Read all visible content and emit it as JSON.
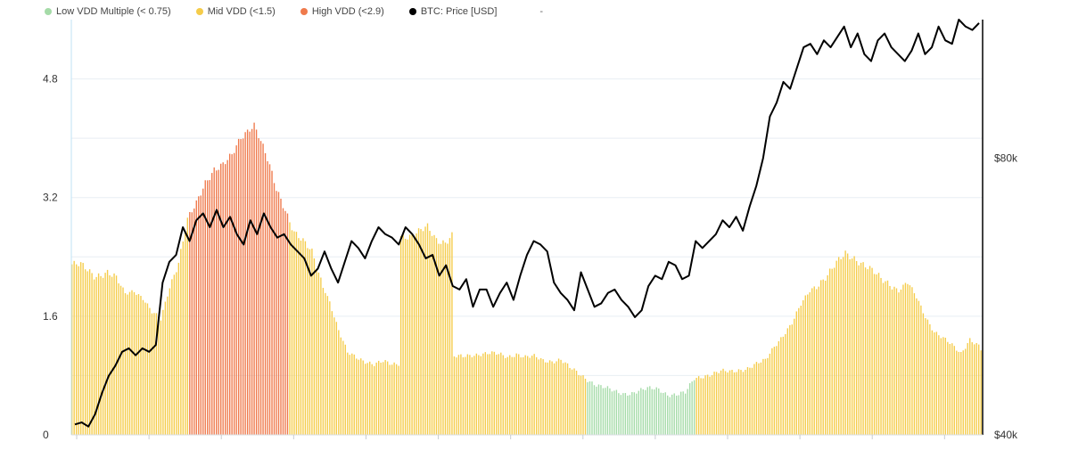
{
  "legend": {
    "items": [
      {
        "label": "Low VDD Multiple (< 0.75)",
        "color": "#a5dba8"
      },
      {
        "label": "Mid VDD (<1.5)",
        "color": "#f5cc4a"
      },
      {
        "label": "High VDD (<2.9)",
        "color": "#ef7a4c"
      },
      {
        "label": "BTC: Price [USD]",
        "color": "#000000"
      }
    ],
    "extra": "-"
  },
  "colors": {
    "low": "#a5dba8",
    "mid": "#f5cc4a",
    "high": "#ef7a4c",
    "price": "#000000",
    "grid": "#e8eef3",
    "left_axis": "#bfe3f5",
    "right_axis": "#000000"
  },
  "chart_data": {
    "type": "bar",
    "title": "",
    "grid": true,
    "legend_position": "top-left",
    "y_left": {
      "ticks": [
        "0",
        "1.6",
        "3.2",
        "4.8"
      ],
      "values": [
        0,
        1.6,
        3.2,
        4.8
      ],
      "range": [
        0,
        5.6
      ]
    },
    "y_right": {
      "ticks": [
        "$40k",
        "$80k"
      ],
      "values": [
        40000,
        80000
      ],
      "range": [
        40000,
        100000
      ]
    },
    "thresholds": {
      "low": 0.75,
      "mid": 1.5,
      "high": 2.9
    },
    "vdd_anchors": [
      {
        "i": 0,
        "v": 2.3
      },
      {
        "i": 4,
        "v": 2.28
      },
      {
        "i": 10,
        "v": 2.15
      },
      {
        "i": 16,
        "v": 2.2
      },
      {
        "i": 20,
        "v": 2.1
      },
      {
        "i": 24,
        "v": 1.9
      },
      {
        "i": 28,
        "v": 1.95
      },
      {
        "i": 32,
        "v": 1.85
      },
      {
        "i": 36,
        "v": 1.65
      },
      {
        "i": 40,
        "v": 1.55
      },
      {
        "i": 44,
        "v": 2.0
      },
      {
        "i": 48,
        "v": 2.35
      },
      {
        "i": 52,
        "v": 2.9
      },
      {
        "i": 56,
        "v": 3.1
      },
      {
        "i": 60,
        "v": 3.4
      },
      {
        "i": 64,
        "v": 3.6
      },
      {
        "i": 68,
        "v": 3.65
      },
      {
        "i": 72,
        "v": 3.75
      },
      {
        "i": 76,
        "v": 4.0
      },
      {
        "i": 80,
        "v": 4.15
      },
      {
        "i": 82,
        "v": 4.2
      },
      {
        "i": 84,
        "v": 4.05
      },
      {
        "i": 88,
        "v": 3.7
      },
      {
        "i": 92,
        "v": 3.3
      },
      {
        "i": 96,
        "v": 3.05
      },
      {
        "i": 100,
        "v": 2.75
      },
      {
        "i": 104,
        "v": 2.6
      },
      {
        "i": 108,
        "v": 2.45
      },
      {
        "i": 112,
        "v": 2.1
      },
      {
        "i": 116,
        "v": 1.8
      },
      {
        "i": 120,
        "v": 1.4
      },
      {
        "i": 124,
        "v": 1.1
      },
      {
        "i": 128,
        "v": 1.05
      },
      {
        "i": 132,
        "v": 1.0
      },
      {
        "i": 136,
        "v": 0.95
      },
      {
        "i": 140,
        "v": 0.98
      },
      {
        "i": 144,
        "v": 0.95
      },
      {
        "i": 147,
        "v": 0.97
      },
      {
        "i": 148,
        "v": 2.7
      },
      {
        "i": 152,
        "v": 2.68
      },
      {
        "i": 156,
        "v": 2.72
      },
      {
        "i": 160,
        "v": 2.8
      },
      {
        "i": 164,
        "v": 2.65
      },
      {
        "i": 168,
        "v": 2.6
      },
      {
        "i": 171,
        "v": 2.68
      },
      {
        "i": 172,
        "v": 1.05
      },
      {
        "i": 176,
        "v": 1.05
      },
      {
        "i": 180,
        "v": 1.08
      },
      {
        "i": 184,
        "v": 1.1
      },
      {
        "i": 188,
        "v": 1.1
      },
      {
        "i": 192,
        "v": 1.08
      },
      {
        "i": 196,
        "v": 1.05
      },
      {
        "i": 200,
        "v": 1.1
      },
      {
        "i": 204,
        "v": 1.05
      },
      {
        "i": 208,
        "v": 1.05
      },
      {
        "i": 212,
        "v": 1.0
      },
      {
        "i": 216,
        "v": 1.0
      },
      {
        "i": 220,
        "v": 1.02
      },
      {
        "i": 224,
        "v": 0.9
      },
      {
        "i": 228,
        "v": 0.82
      },
      {
        "i": 232,
        "v": 0.75
      },
      {
        "i": 236,
        "v": 0.68
      },
      {
        "i": 240,
        "v": 0.63
      },
      {
        "i": 244,
        "v": 0.58
      },
      {
        "i": 248,
        "v": 0.56
      },
      {
        "i": 252,
        "v": 0.57
      },
      {
        "i": 256,
        "v": 0.6
      },
      {
        "i": 260,
        "v": 0.62
      },
      {
        "i": 264,
        "v": 0.62
      },
      {
        "i": 268,
        "v": 0.55
      },
      {
        "i": 272,
        "v": 0.54
      },
      {
        "i": 276,
        "v": 0.56
      },
      {
        "i": 280,
        "v": 0.76
      },
      {
        "i": 284,
        "v": 0.8
      },
      {
        "i": 288,
        "v": 0.82
      },
      {
        "i": 292,
        "v": 0.85
      },
      {
        "i": 296,
        "v": 0.85
      },
      {
        "i": 300,
        "v": 0.88
      },
      {
        "i": 304,
        "v": 0.9
      },
      {
        "i": 308,
        "v": 0.95
      },
      {
        "i": 312,
        "v": 1.0
      },
      {
        "i": 316,
        "v": 1.2
      },
      {
        "i": 320,
        "v": 1.35
      },
      {
        "i": 324,
        "v": 1.5
      },
      {
        "i": 328,
        "v": 1.75
      },
      {
        "i": 332,
        "v": 1.95
      },
      {
        "i": 336,
        "v": 2.05
      },
      {
        "i": 340,
        "v": 2.15
      },
      {
        "i": 344,
        "v": 2.3
      },
      {
        "i": 348,
        "v": 2.45
      },
      {
        "i": 352,
        "v": 2.4
      },
      {
        "i": 356,
        "v": 2.3
      },
      {
        "i": 360,
        "v": 2.2
      },
      {
        "i": 364,
        "v": 2.1
      },
      {
        "i": 368,
        "v": 2.05
      },
      {
        "i": 372,
        "v": 1.95
      },
      {
        "i": 376,
        "v": 2.05
      },
      {
        "i": 380,
        "v": 1.85
      },
      {
        "i": 384,
        "v": 1.6
      },
      {
        "i": 388,
        "v": 1.4
      },
      {
        "i": 392,
        "v": 1.3
      },
      {
        "i": 396,
        "v": 1.2
      },
      {
        "i": 400,
        "v": 1.1
      },
      {
        "i": 404,
        "v": 1.3
      },
      {
        "i": 408,
        "v": 1.2
      },
      {
        "i": 409,
        "v": 1.15
      }
    ],
    "price_series": {
      "name": "BTC: Price [USD]",
      "values": [
        41500,
        41800,
        41200,
        43000,
        46000,
        48500,
        50000,
        52000,
        52500,
        51500,
        52500,
        52000,
        53000,
        62000,
        65000,
        66000,
        70000,
        68000,
        71000,
        72000,
        70000,
        72500,
        70000,
        71500,
        69000,
        67500,
        71000,
        69000,
        72000,
        70000,
        68500,
        69000,
        67500,
        66500,
        65500,
        63000,
        64000,
        66500,
        64000,
        62000,
        65000,
        68000,
        67000,
        65500,
        68000,
        70000,
        69000,
        68500,
        67500,
        70000,
        69000,
        67500,
        65500,
        66000,
        63000,
        64500,
        61500,
        61000,
        62500,
        58500,
        61000,
        61000,
        58500,
        60500,
        62000,
        59500,
        63000,
        66000,
        68000,
        67500,
        66500,
        62000,
        60500,
        59500,
        58000,
        63500,
        61000,
        58500,
        59000,
        60500,
        61000,
        59500,
        58500,
        57000,
        58000,
        61500,
        63000,
        62500,
        65000,
        64500,
        62500,
        63000,
        68000,
        67000,
        68000,
        69000,
        71000,
        70000,
        71500,
        69500,
        73000,
        76000,
        80000,
        86000,
        88000,
        91000,
        90000,
        93000,
        96000,
        96500,
        95000,
        97000,
        96000,
        97500,
        99000,
        96000,
        98000,
        95000,
        94000,
        97000,
        98000,
        96000,
        95000,
        94000,
        95500,
        98000,
        95000,
        96000,
        99000,
        97000,
        96500,
        100000,
        99000,
        98500,
        99500
      ]
    }
  }
}
